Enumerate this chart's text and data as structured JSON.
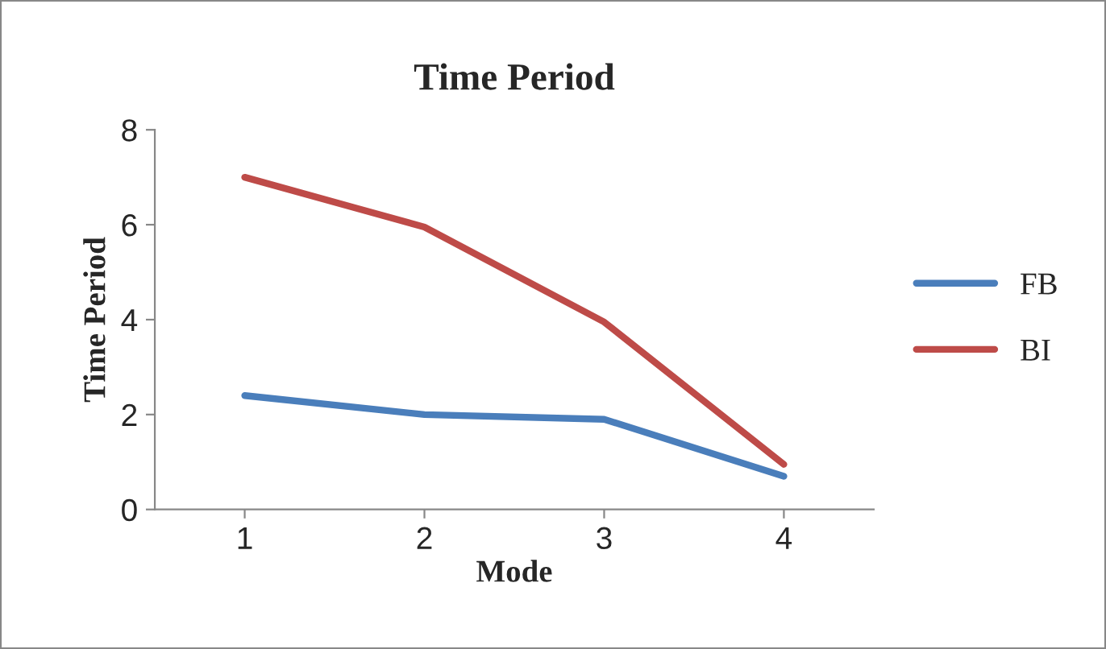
{
  "chart_data": {
    "type": "line",
    "title": "Time Period",
    "xlabel": "Mode",
    "ylabel": "Time Period",
    "categories": [
      "1",
      "2",
      "3",
      "4"
    ],
    "series": [
      {
        "name": "FB",
        "color": "#4a7ebb",
        "values": [
          2.4,
          2.0,
          1.9,
          0.7
        ]
      },
      {
        "name": "BI",
        "color": "#be4b48",
        "values": [
          7.0,
          5.95,
          3.95,
          0.95
        ]
      }
    ],
    "ylim": [
      0,
      8
    ],
    "yticks": [
      0,
      2,
      4,
      6,
      8
    ],
    "grid": false,
    "legend": "right",
    "marker": "none",
    "line_style": "solid"
  }
}
